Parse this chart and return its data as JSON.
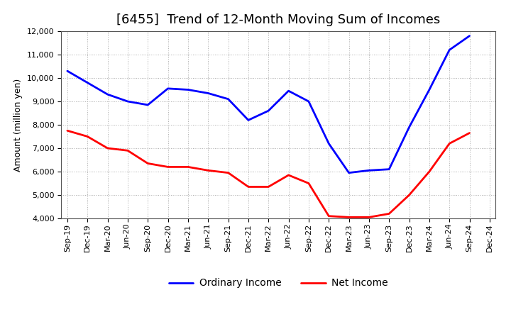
{
  "title": "[6455]  Trend of 12-Month Moving Sum of Incomes",
  "ylabel": "Amount (million yen)",
  "x_labels": [
    "Sep-19",
    "Dec-19",
    "Mar-20",
    "Jun-20",
    "Sep-20",
    "Dec-20",
    "Mar-21",
    "Jun-21",
    "Sep-21",
    "Dec-21",
    "Mar-22",
    "Jun-22",
    "Sep-22",
    "Dec-22",
    "Mar-23",
    "Jun-23",
    "Sep-23",
    "Dec-23",
    "Mar-24",
    "Jun-24",
    "Sep-24",
    "Dec-24"
  ],
  "ordinary_income": [
    10300,
    9800,
    9300,
    9000,
    8850,
    9550,
    9500,
    9350,
    9100,
    8200,
    8600,
    9450,
    9000,
    7200,
    5950,
    6050,
    6100,
    7900,
    9500,
    11200,
    11800,
    null
  ],
  "net_income": [
    7750,
    7500,
    7000,
    6900,
    6350,
    6200,
    6200,
    6050,
    5950,
    5350,
    5350,
    5850,
    5500,
    4100,
    4050,
    4050,
    4200,
    5000,
    6000,
    7200,
    7650,
    null
  ],
  "ordinary_income_color": "#0000FF",
  "net_income_color": "#FF0000",
  "background_color": "#FFFFFF",
  "plot_bg_color": "#FFFFFF",
  "grid_color": "#999999",
  "ylim": [
    4000,
    12000
  ],
  "yticks": [
    4000,
    5000,
    6000,
    7000,
    8000,
    9000,
    10000,
    11000,
    12000
  ],
  "line_width": 2.0,
  "title_fontsize": 13,
  "axis_fontsize": 9,
  "tick_fontsize": 8,
  "legend_fontsize": 10,
  "legend_labels": [
    "Ordinary Income",
    "Net Income"
  ]
}
